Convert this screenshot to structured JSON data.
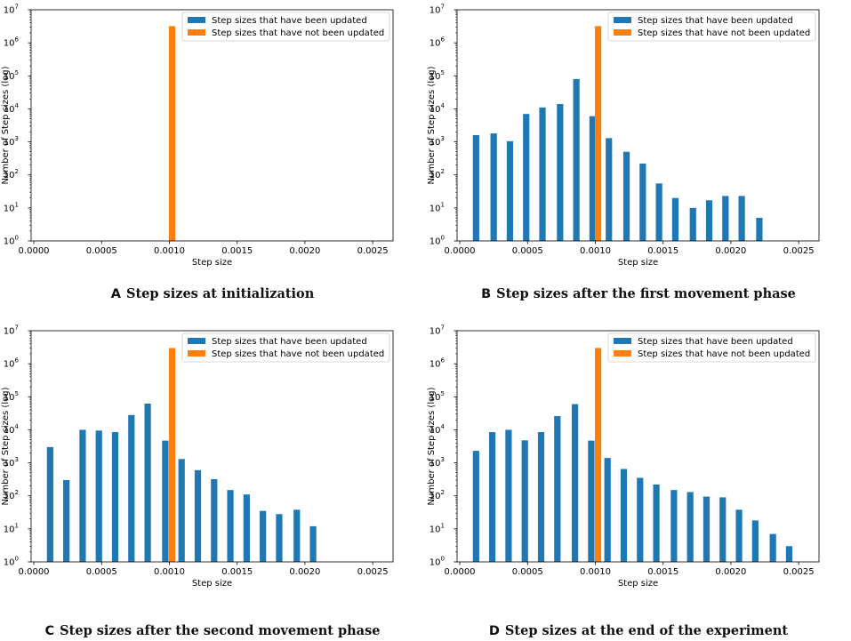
{
  "colors": {
    "updated": "#1f77b4",
    "not_updated": "#ff7f0e"
  },
  "chart_data": [
    {
      "type": "bar",
      "panel_letter": "A",
      "caption": "Step sizes at initialization",
      "xlabel": "Step size",
      "ylabel": "Number of Step sizes (log)",
      "xlim": [
        -2e-05,
        0.00265
      ],
      "ylim_exp": [
        0,
        7
      ],
      "x_ticks": [
        "0.0000",
        "0.0005",
        "0.0010",
        "0.0015",
        "0.0020",
        "0.0025"
      ],
      "y_ticks": [
        "10",
        "10",
        "10",
        "10",
        "10",
        "10",
        "10",
        "10"
      ],
      "y_tick_exps": [
        "0",
        "1",
        "2",
        "3",
        "4",
        "5",
        "6",
        "7"
      ],
      "legend": [
        "Step sizes that have been updated",
        "Step sizes that have not been updated"
      ],
      "series": [
        {
          "name": "Step sizes that have been updated",
          "x": [],
          "values": []
        },
        {
          "name": "Step sizes that have not been updated",
          "x": [
            0.00102
          ],
          "values": [
            3200000
          ]
        }
      ]
    },
    {
      "type": "bar",
      "panel_letter": "B",
      "caption": "Step sizes after the first movement phase",
      "xlabel": "Step size",
      "ylabel": "Number of Step sizes (log)",
      "xlim": [
        -2e-05,
        0.00265
      ],
      "ylim_exp": [
        0,
        7
      ],
      "x_ticks": [
        "0.0000",
        "0.0005",
        "0.0010",
        "0.0015",
        "0.0020",
        "0.0025"
      ],
      "y_ticks": [
        "10",
        "10",
        "10",
        "10",
        "10",
        "10",
        "10",
        "10"
      ],
      "y_tick_exps": [
        "0",
        "1",
        "2",
        "3",
        "4",
        "5",
        "6",
        "7"
      ],
      "legend": [
        "Step sizes that have been updated",
        "Step sizes that have not been updated"
      ],
      "series": [
        {
          "name": "Step sizes that have been updated",
          "x": [
            0.00012,
            0.00025,
            0.00037,
            0.00049,
            0.00061,
            0.00074,
            0.00086,
            0.00098,
            0.0011,
            0.00123,
            0.00135,
            0.00147,
            0.00159,
            0.00172,
            0.00184,
            0.00196,
            0.00208,
            0.00221
          ],
          "values": [
            1600,
            1800,
            1050,
            7000,
            11000,
            14000,
            80000,
            6000,
            1300,
            500,
            220,
            55,
            20,
            10,
            17,
            23,
            23,
            5
          ]
        },
        {
          "name": "Step sizes that have not been updated",
          "x": [
            0.00102
          ],
          "values": [
            3200000
          ]
        }
      ]
    },
    {
      "type": "bar",
      "panel_letter": "C",
      "caption": "Step sizes after the second movement phase",
      "xlabel": "Step size",
      "ylabel": "Number of Step sizes (log)",
      "xlim": [
        -2e-05,
        0.00265
      ],
      "ylim_exp": [
        0,
        7
      ],
      "x_ticks": [
        "0.0000",
        "0.0005",
        "0.0010",
        "0.0015",
        "0.0020",
        "0.0025"
      ],
      "y_ticks": [
        "10",
        "10",
        "10",
        "10",
        "10",
        "10",
        "10",
        "10"
      ],
      "y_tick_exps": [
        "0",
        "1",
        "2",
        "3",
        "4",
        "5",
        "6",
        "7"
      ],
      "legend": [
        "Step sizes that have been updated",
        "Step sizes that have not been updated"
      ],
      "series": [
        {
          "name": "Step sizes that have been updated",
          "x": [
            0.00012,
            0.00024,
            0.00036,
            0.00048,
            0.0006,
            0.00072,
            0.00084,
            0.00097,
            0.00109,
            0.00121,
            0.00133,
            0.00145,
            0.00157,
            0.00169,
            0.00181,
            0.00194,
            0.00206
          ],
          "values": [
            3000,
            300,
            10000,
            9500,
            8500,
            28000,
            62000,
            4700,
            1300,
            600,
            320,
            150,
            110,
            35,
            28,
            38,
            12
          ]
        },
        {
          "name": "Step sizes that have not been updated",
          "x": [
            0.00102
          ],
          "values": [
            3000000
          ]
        }
      ]
    },
    {
      "type": "bar",
      "panel_letter": "D",
      "caption": "Step sizes at the end of the experiment",
      "xlabel": "Step size",
      "ylabel": "Number of Step sizes (log)",
      "xlim": [
        -2e-05,
        0.00265
      ],
      "ylim_exp": [
        0,
        7
      ],
      "x_ticks": [
        "0.0000",
        "0.0005",
        "0.0010",
        "0.0015",
        "0.0020",
        "0.0025"
      ],
      "y_ticks": [
        "10",
        "10",
        "10",
        "10",
        "10",
        "10",
        "10",
        "10"
      ],
      "y_tick_exps": [
        "0",
        "1",
        "2",
        "3",
        "4",
        "5",
        "6",
        "7"
      ],
      "legend": [
        "Step sizes that have been updated",
        "Step sizes that have not been updated"
      ],
      "series": [
        {
          "name": "Step sizes that have been updated",
          "x": [
            0.00012,
            0.00024,
            0.00036,
            0.00048,
            0.0006,
            0.00072,
            0.00085,
            0.00097,
            0.00109,
            0.00121,
            0.00133,
            0.00145,
            0.00158,
            0.0017,
            0.00182,
            0.00194,
            0.00206,
            0.00218,
            0.00231,
            0.00243
          ],
          "values": [
            2300,
            8500,
            10000,
            4800,
            8500,
            26000,
            60000,
            4700,
            1400,
            650,
            350,
            220,
            150,
            130,
            95,
            90,
            38,
            18,
            7,
            3
          ]
        },
        {
          "name": "Step sizes that have not been updated",
          "x": [
            0.00102
          ],
          "values": [
            3000000
          ]
        }
      ]
    }
  ]
}
